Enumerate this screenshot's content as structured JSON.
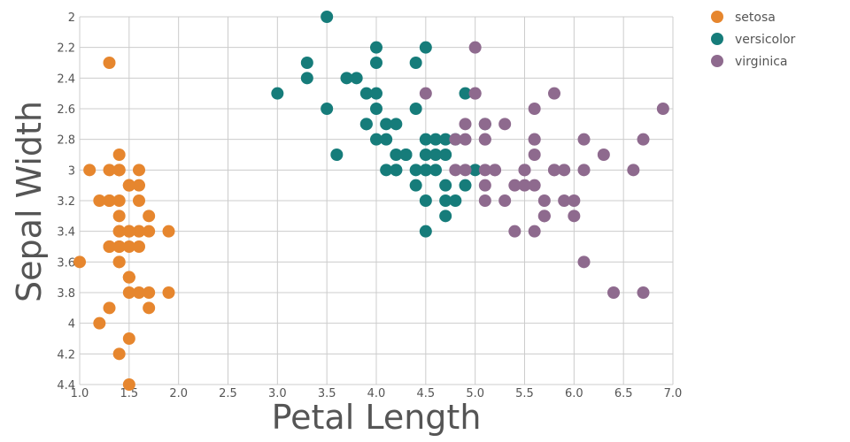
{
  "chart_data": {
    "type": "scatter",
    "title": "",
    "xlabel": "Petal Length",
    "ylabel": "Sepal Width",
    "xlim": [
      1.0,
      7.0
    ],
    "ylim": [
      2.0,
      4.4
    ],
    "y_inverted": true,
    "grid": true,
    "legend_position": "top-right",
    "x_ticks": [
      "1.0",
      "1.5",
      "2.0",
      "2.5",
      "3.0",
      "3.5",
      "4.0",
      "4.5",
      "5.0",
      "5.5",
      "6.0",
      "6.5",
      "7.0"
    ],
    "y_ticks": [
      "2",
      "2.2",
      "2.4",
      "2.6",
      "2.8",
      "3",
      "3.2",
      "3.4",
      "3.6",
      "3.8",
      "4",
      "4.2",
      "4.4"
    ],
    "series": [
      {
        "name": "setosa",
        "color": "#e6862e",
        "points": [
          [
            1.4,
            3.5
          ],
          [
            1.4,
            3.0
          ],
          [
            1.3,
            3.2
          ],
          [
            1.5,
            3.1
          ],
          [
            1.4,
            3.6
          ],
          [
            1.7,
            3.9
          ],
          [
            1.4,
            3.4
          ],
          [
            1.5,
            3.4
          ],
          [
            1.4,
            2.9
          ],
          [
            1.5,
            3.1
          ],
          [
            1.5,
            3.7
          ],
          [
            1.6,
            3.4
          ],
          [
            1.4,
            3.0
          ],
          [
            1.1,
            3.0
          ],
          [
            1.2,
            4.0
          ],
          [
            1.5,
            4.4
          ],
          [
            1.3,
            3.9
          ],
          [
            1.4,
            3.5
          ],
          [
            1.7,
            3.8
          ],
          [
            1.5,
            3.8
          ],
          [
            1.7,
            3.4
          ],
          [
            1.5,
            3.7
          ],
          [
            1.0,
            3.6
          ],
          [
            1.7,
            3.3
          ],
          [
            1.9,
            3.4
          ],
          [
            1.6,
            3.0
          ],
          [
            1.6,
            3.4
          ],
          [
            1.5,
            3.5
          ],
          [
            1.4,
            3.4
          ],
          [
            1.6,
            3.2
          ],
          [
            1.6,
            3.1
          ],
          [
            1.5,
            3.4
          ],
          [
            1.5,
            4.1
          ],
          [
            1.4,
            4.2
          ],
          [
            1.5,
            3.1
          ],
          [
            1.2,
            3.2
          ],
          [
            1.3,
            3.5
          ],
          [
            1.4,
            3.6
          ],
          [
            1.3,
            3.0
          ],
          [
            1.5,
            3.4
          ],
          [
            1.3,
            3.5
          ],
          [
            1.3,
            2.3
          ],
          [
            1.3,
            3.2
          ],
          [
            1.6,
            3.5
          ],
          [
            1.9,
            3.8
          ],
          [
            1.4,
            3.0
          ],
          [
            1.6,
            3.8
          ],
          [
            1.4,
            3.2
          ],
          [
            1.5,
            3.7
          ],
          [
            1.4,
            3.3
          ]
        ]
      },
      {
        "name": "versicolor",
        "color": "#167c7a",
        "points": [
          [
            4.7,
            3.2
          ],
          [
            4.5,
            3.2
          ],
          [
            4.9,
            3.1
          ],
          [
            4.0,
            2.3
          ],
          [
            4.6,
            2.8
          ],
          [
            4.5,
            2.8
          ],
          [
            4.7,
            3.3
          ],
          [
            3.3,
            2.4
          ],
          [
            4.6,
            2.9
          ],
          [
            3.9,
            2.7
          ],
          [
            3.5,
            2.0
          ],
          [
            4.2,
            3.0
          ],
          [
            4.0,
            2.2
          ],
          [
            4.7,
            2.9
          ],
          [
            3.6,
            2.9
          ],
          [
            4.4,
            3.1
          ],
          [
            4.5,
            3.0
          ],
          [
            4.1,
            2.7
          ],
          [
            4.5,
            2.2
          ],
          [
            3.9,
            2.5
          ],
          [
            4.8,
            3.2
          ],
          [
            4.0,
            2.8
          ],
          [
            4.9,
            2.5
          ],
          [
            4.7,
            2.8
          ],
          [
            4.3,
            2.9
          ],
          [
            4.4,
            3.0
          ],
          [
            4.8,
            2.8
          ],
          [
            5.0,
            3.0
          ],
          [
            4.5,
            2.9
          ],
          [
            3.5,
            2.6
          ],
          [
            3.8,
            2.4
          ],
          [
            3.7,
            2.4
          ],
          [
            3.9,
            2.7
          ],
          [
            5.1,
            2.7
          ],
          [
            4.5,
            3.0
          ],
          [
            4.5,
            3.4
          ],
          [
            4.7,
            3.1
          ],
          [
            4.4,
            2.3
          ],
          [
            4.1,
            3.0
          ],
          [
            4.0,
            2.5
          ],
          [
            4.4,
            2.6
          ],
          [
            4.6,
            3.0
          ],
          [
            4.0,
            2.6
          ],
          [
            3.3,
            2.3
          ],
          [
            4.2,
            2.7
          ],
          [
            4.2,
            3.0
          ],
          [
            4.2,
            2.9
          ],
          [
            4.3,
            2.9
          ],
          [
            3.0,
            2.5
          ],
          [
            4.1,
            2.8
          ]
        ]
      },
      {
        "name": "virginica",
        "color": "#8e6a8e",
        "points": [
          [
            6.0,
            3.3
          ],
          [
            5.1,
            2.7
          ],
          [
            5.9,
            3.0
          ],
          [
            5.6,
            2.9
          ],
          [
            5.8,
            3.0
          ],
          [
            6.6,
            3.0
          ],
          [
            4.5,
            2.5
          ],
          [
            6.3,
            2.9
          ],
          [
            5.8,
            2.5
          ],
          [
            6.1,
            3.6
          ],
          [
            5.1,
            3.2
          ],
          [
            5.3,
            2.7
          ],
          [
            5.5,
            3.0
          ],
          [
            5.0,
            2.5
          ],
          [
            5.1,
            2.8
          ],
          [
            5.3,
            3.2
          ],
          [
            5.5,
            3.0
          ],
          [
            6.7,
            3.8
          ],
          [
            6.9,
            2.6
          ],
          [
            5.0,
            2.2
          ],
          [
            5.7,
            3.2
          ],
          [
            4.9,
            2.8
          ],
          [
            6.7,
            2.8
          ],
          [
            4.9,
            2.7
          ],
          [
            5.7,
            3.3
          ],
          [
            6.0,
            3.2
          ],
          [
            4.8,
            2.8
          ],
          [
            4.9,
            3.0
          ],
          [
            5.6,
            2.8
          ],
          [
            5.8,
            3.0
          ],
          [
            6.1,
            2.8
          ],
          [
            6.4,
            3.8
          ],
          [
            5.6,
            2.8
          ],
          [
            5.1,
            2.8
          ],
          [
            5.6,
            2.6
          ],
          [
            6.1,
            3.0
          ],
          [
            5.6,
            3.4
          ],
          [
            5.5,
            3.1
          ],
          [
            4.8,
            3.0
          ],
          [
            5.4,
            3.1
          ],
          [
            5.6,
            3.1
          ],
          [
            5.1,
            3.1
          ],
          [
            5.1,
            2.7
          ],
          [
            5.9,
            3.2
          ],
          [
            5.7,
            3.3
          ],
          [
            5.2,
            3.0
          ],
          [
            5.0,
            2.5
          ],
          [
            5.2,
            3.0
          ],
          [
            5.4,
            3.4
          ],
          [
            5.1,
            3.0
          ]
        ]
      }
    ]
  }
}
